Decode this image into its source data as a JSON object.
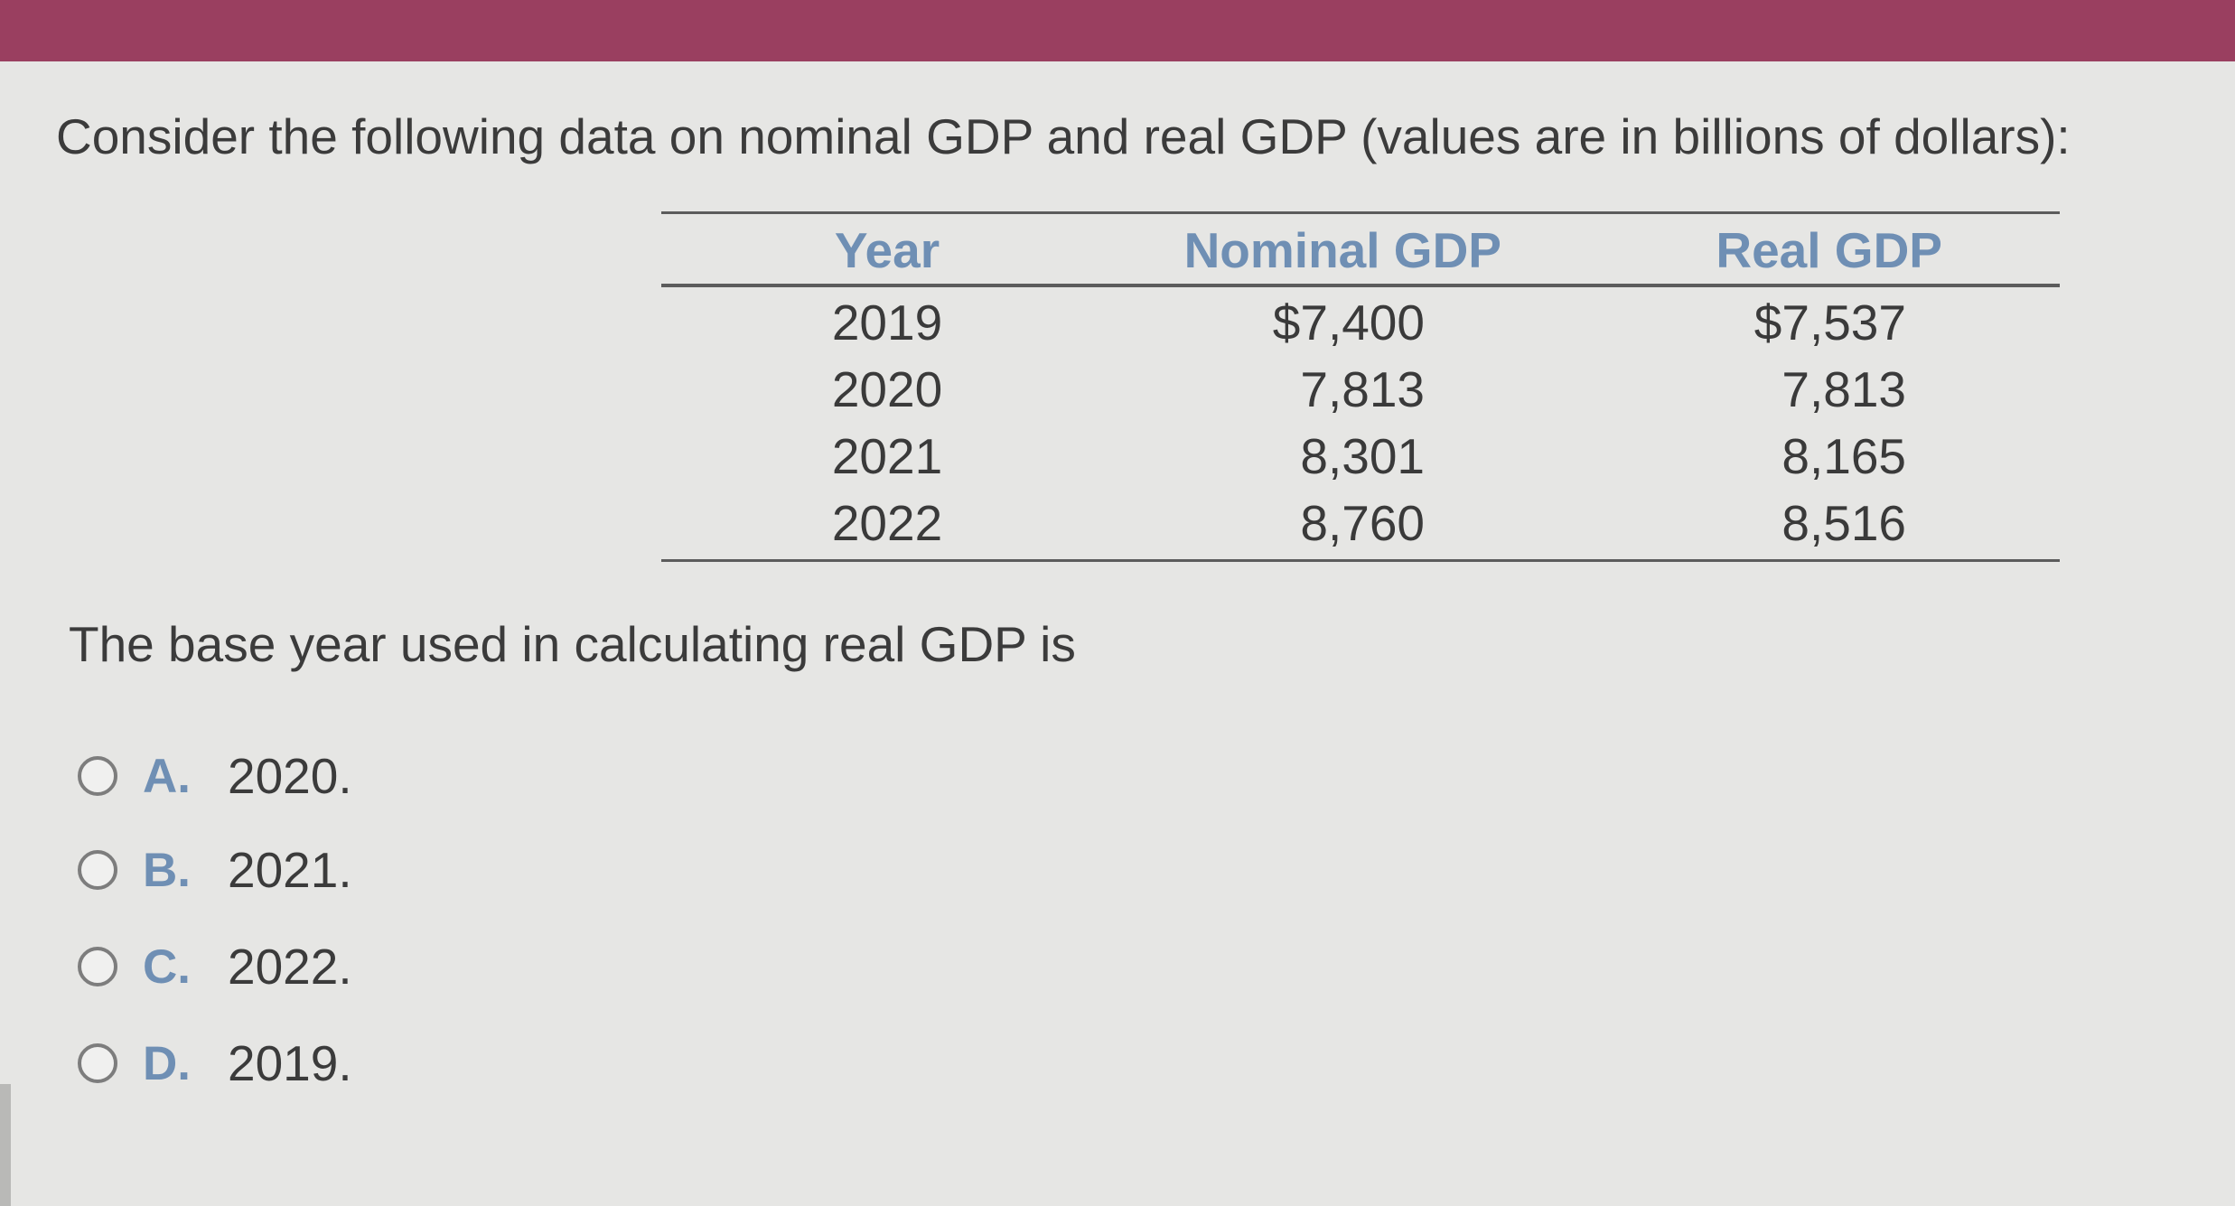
{
  "question": {
    "text": "Consider the following data on nominal GDP and real GDP (values are in billions of dollars):"
  },
  "table": {
    "headers": [
      "Year",
      "Nominal GDP",
      "Real GDP"
    ],
    "rows": [
      [
        "2019",
        "$7,400",
        "$7,537"
      ],
      [
        "2020",
        "7,813",
        "7,813"
      ],
      [
        "2021",
        "8,301",
        "8,165"
      ],
      [
        "2022",
        "8,760",
        "8,516"
      ]
    ]
  },
  "prompt": "The base year used in calculating real GDP is",
  "options": [
    {
      "letter": "A.",
      "text": "2020."
    },
    {
      "letter": "B.",
      "text": "2021."
    },
    {
      "letter": "C.",
      "text": "2022."
    },
    {
      "letter": "D.",
      "text": "2019."
    }
  ],
  "colors": {
    "header_bar": "#9a3f60",
    "accent": "#6f8fb4",
    "background": "#e6e6e4"
  }
}
